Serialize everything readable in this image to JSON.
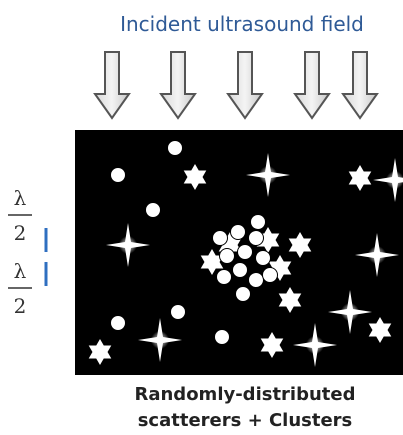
{
  "title": "Incident ultrasound field",
  "scale": [
    {
      "numerator": "λ",
      "denominator": "2"
    },
    {
      "numerator": "λ",
      "denominator": "2"
    }
  ],
  "caption": [
    "Randomly-distributed",
    "scatterers + Clusters"
  ]
}
